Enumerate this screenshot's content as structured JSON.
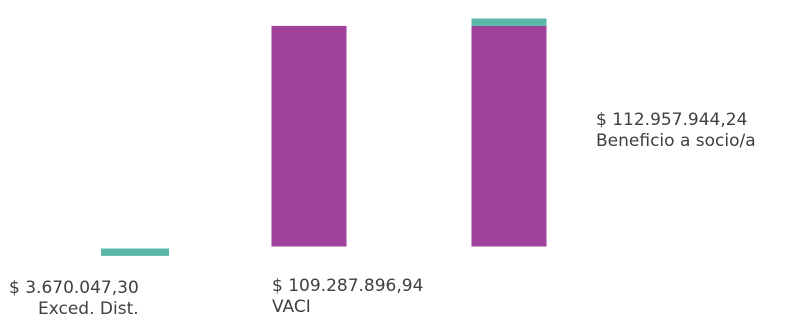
{
  "chart_data": {
    "type": "bar",
    "stacked": true,
    "grid": false,
    "legend": "none",
    "categories": [
      "Exced. Dist.",
      "VACI",
      "Beneficio a socio/a"
    ],
    "series": [
      {
        "key": "vaci",
        "color": "#a0429a",
        "values": [
          0,
          109287896.94,
          109287896.94
        ]
      },
      {
        "key": "exced",
        "color": "#5bb5a8",
        "values": [
          3670047.3,
          0,
          3670047.3
        ]
      }
    ],
    "value_labels": [
      {
        "amount": "$ 3.670.047,30",
        "name": "Exced. Dist."
      },
      {
        "amount": "$ 109.287.896,94",
        "name": "VACI"
      },
      {
        "amount": "$ 112.957.944,24",
        "name": "Beneficio a socio/a"
      }
    ]
  }
}
